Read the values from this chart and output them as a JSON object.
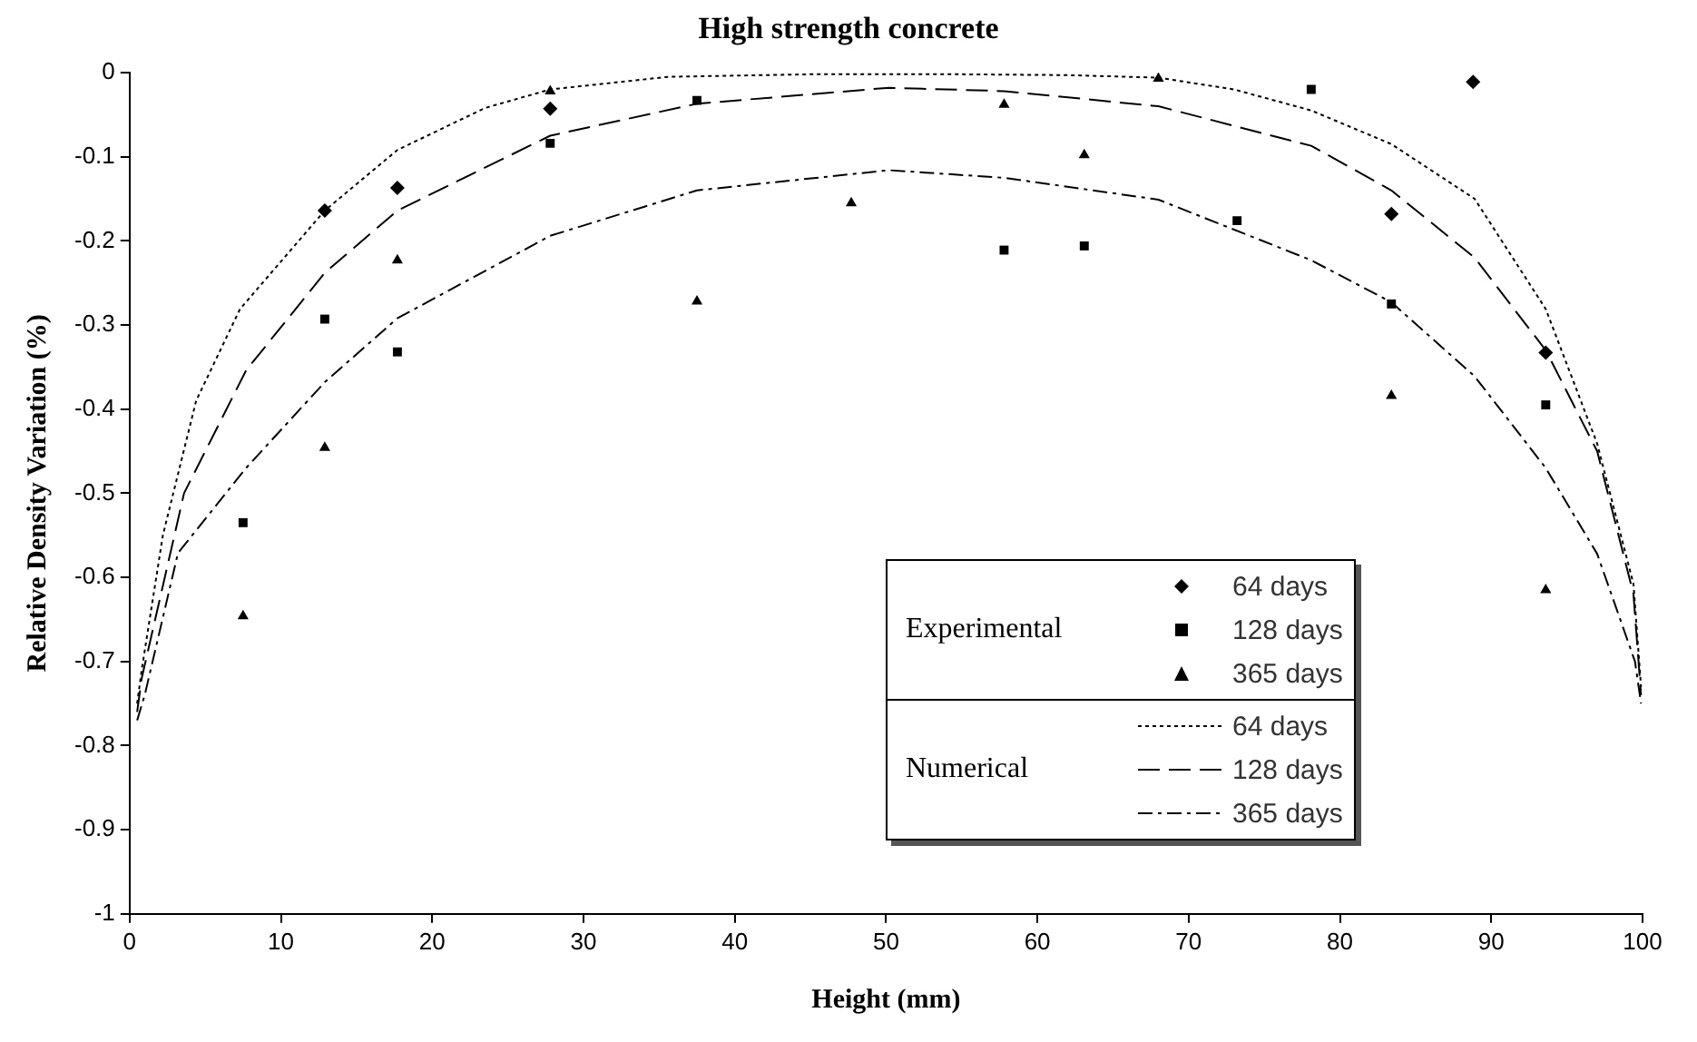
{
  "chart_data": {
    "type": "scatter",
    "title": "High strength concrete",
    "xlabel": "Height (mm)",
    "ylabel": "Relative Density Variation (%)",
    "xlim": [
      0,
      100
    ],
    "xticks": [
      0,
      10,
      20,
      30,
      40,
      50,
      60,
      70,
      80,
      90,
      100
    ],
    "ylim": [
      -1,
      0
    ],
    "yticks": [
      -1,
      -0.9,
      -0.8,
      -0.7,
      -0.6,
      -0.5,
      -0.4,
      -0.3,
      -0.2,
      -0.1,
      0
    ],
    "grid": false,
    "legend": "right",
    "annotations": [
      "Experimental",
      "Numerical"
    ],
    "series": [
      {
        "name": "64 days",
        "marker": "diamond",
        "color": "#000000",
        "x": [
          12.9,
          17.7,
          27.8,
          83.4,
          88.8,
          93.6
        ],
        "values": [
          -0.164,
          -0.137,
          -0.043,
          -0.168,
          -0.011,
          -0.333
        ]
      },
      {
        "name": "128 days",
        "marker": "square",
        "color": "#000000",
        "x": [
          7.5,
          12.9,
          17.7,
          27.8,
          37.5,
          57.8,
          63.1,
          73.2,
          78.1,
          83.4,
          93.6
        ],
        "values": [
          -0.535,
          -0.293,
          -0.332,
          -0.084,
          -0.033,
          -0.211,
          -0.206,
          -0.176,
          -0.02,
          -0.275,
          -0.395
        ]
      },
      {
        "name": "365 days",
        "marker": "triangle",
        "color": "#000000",
        "x": [
          7.5,
          12.9,
          17.7,
          27.8,
          37.5,
          47.7,
          57.8,
          63.1,
          68,
          83.4,
          93.6
        ],
        "values": [
          -0.646,
          -0.446,
          -0.223,
          -0.022,
          -0.272,
          -0.155,
          -0.038,
          -0.098,
          -0.007,
          -0.384,
          -0.615
        ]
      },
      {
        "name": "64 days",
        "type": "line",
        "line_style": "dotted",
        "color": "#000000",
        "x": [
          0.5,
          0.8,
          2.2,
          4.4,
          7.3,
          12.9,
          17.7,
          23.5,
          27.8,
          35.6,
          45,
          55,
          62,
          68,
          73,
          78.1,
          83.4,
          88.9,
          93.6,
          97,
          99.4,
          99.9
        ],
        "values": [
          -0.75,
          -0.71,
          -0.55,
          -0.39,
          -0.281,
          -0.164,
          -0.092,
          -0.042,
          -0.02,
          -0.005,
          -0.002,
          -0.002,
          -0.003,
          -0.006,
          -0.02,
          -0.045,
          -0.085,
          -0.15,
          -0.281,
          -0.441,
          -0.608,
          -0.73
        ]
      },
      {
        "name": "128 days",
        "type": "line",
        "line_style": "dashed",
        "color": "#000000",
        "x": [
          0.5,
          0.8,
          3.6,
          7.7,
          12.9,
          17.7,
          27.8,
          37.5,
          50.2,
          57.8,
          68,
          78.1,
          83.4,
          88.9,
          93.6,
          97,
          99.4,
          99.9
        ],
        "values": [
          -0.76,
          -0.72,
          -0.5,
          -0.354,
          -0.238,
          -0.164,
          -0.075,
          -0.037,
          -0.018,
          -0.022,
          -0.04,
          -0.087,
          -0.14,
          -0.22,
          -0.33,
          -0.45,
          -0.62,
          -0.74
        ]
      },
      {
        "name": "365 days",
        "type": "line",
        "line_style": "dashdot",
        "color": "#000000",
        "x": [
          0.5,
          1,
          3.2,
          7.7,
          12.9,
          17.7,
          27.8,
          37.5,
          50.2,
          57.8,
          68,
          78.1,
          83.4,
          88.9,
          93.6,
          97,
          99.5,
          99.9
        ],
        "values": [
          -0.77,
          -0.74,
          -0.571,
          -0.47,
          -0.368,
          -0.292,
          -0.194,
          -0.14,
          -0.116,
          -0.125,
          -0.151,
          -0.223,
          -0.273,
          -0.361,
          -0.47,
          -0.572,
          -0.7,
          -0.75
        ]
      }
    ]
  }
}
